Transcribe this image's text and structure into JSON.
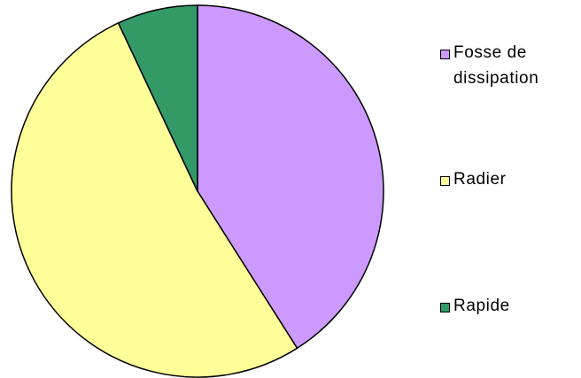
{
  "chart_data": {
    "type": "pie",
    "title": "",
    "slices": [
      {
        "label": "Fosse de\ndissipation",
        "value": 41,
        "color": "#CC99FF"
      },
      {
        "label": "Radier",
        "value": 52,
        "color": "#FFFF99"
      },
      {
        "label": "Rapide",
        "value": 7,
        "color": "#339966"
      }
    ],
    "start_angle_deg": 0,
    "direction": "clockwise",
    "legend_position": "right"
  }
}
